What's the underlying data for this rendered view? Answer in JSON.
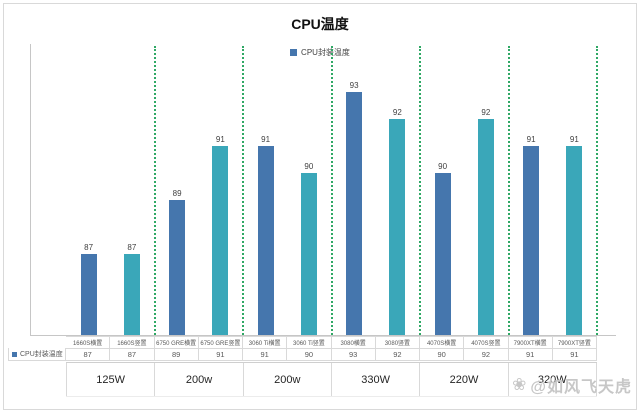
{
  "frame": {
    "title": "CPU温度"
  },
  "legend": {
    "label": "CPU封装温度",
    "marker_color": "#4576ad"
  },
  "table": {
    "row_header": "CPU封装温度"
  },
  "watermark": {
    "icon": "❀",
    "text": "@如风飞天虎"
  },
  "chart_data": {
    "type": "bar",
    "title": "CPU温度",
    "legend": [
      "CPU封装温度"
    ],
    "legend_position": "top-center",
    "value_labels": true,
    "grid": false,
    "y_axis_ticks_visible": false,
    "ylim": [
      84,
      94
    ],
    "bar_colors": [
      "#4576ad",
      "#3aa7b9"
    ],
    "separator_style": "green dotted vertical lines between groups",
    "separator_color": "#2fa865",
    "categories": [
      "1660S横置",
      "1660S竖置",
      "6750 GRE横置",
      "6750 GRE竖置",
      "3060 Ti横置",
      "3060 Ti竖置",
      "3080横置",
      "3080竖置",
      "4070S横置",
      "4070S竖置",
      "7900XT横置",
      "7900XT竖置"
    ],
    "values": [
      87,
      87,
      89,
      91,
      91,
      90,
      93,
      92,
      90,
      92,
      91,
      91
    ],
    "groups": [
      {
        "group_label": "125W",
        "bars": [
          {
            "name": "1660S横置",
            "value": 87
          },
          {
            "name": "1660S竖置",
            "value": 87
          }
        ]
      },
      {
        "group_label": "200w",
        "bars": [
          {
            "name": "6750 GRE横置",
            "value": 89
          },
          {
            "name": "6750 GRE竖置",
            "value": 91
          }
        ]
      },
      {
        "group_label": "200w",
        "bars": [
          {
            "name": "3060 Ti横置",
            "value": 91
          },
          {
            "name": "3060 Ti竖置",
            "value": 90
          }
        ]
      },
      {
        "group_label": "330W",
        "bars": [
          {
            "name": "3080横置",
            "value": 93
          },
          {
            "name": "3080竖置",
            "value": 92
          }
        ]
      },
      {
        "group_label": "220W",
        "bars": [
          {
            "name": "4070S横置",
            "value": 90
          },
          {
            "name": "4070S竖置",
            "value": 92
          }
        ]
      },
      {
        "group_label": "320W",
        "bars": [
          {
            "name": "7900XT横置",
            "value": 91
          },
          {
            "name": "7900XT竖置",
            "value": 91
          }
        ]
      }
    ]
  }
}
